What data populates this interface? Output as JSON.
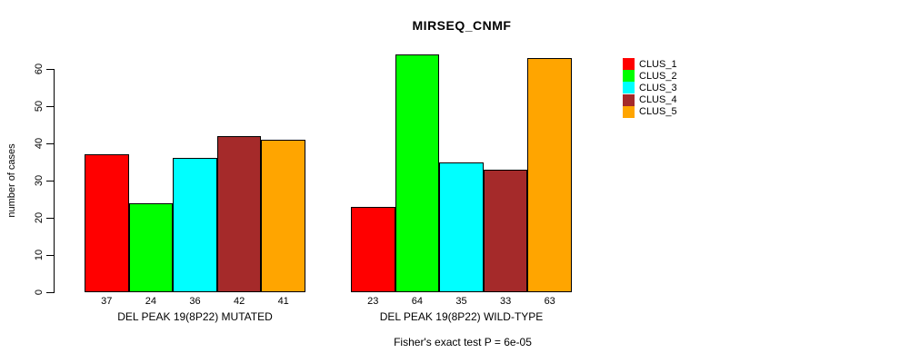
{
  "chart_data": {
    "type": "bar",
    "title": "MIRSEQ_CNMF",
    "ylabel": "number of cases",
    "xlabel": "",
    "ylim": [
      0,
      65
    ],
    "yticks": [
      0,
      10,
      20,
      30,
      40,
      50,
      60
    ],
    "grid": false,
    "legend_position": "right",
    "categories": [
      "DEL PEAK 19(8P22) MUTATED",
      "DEL PEAK 19(8P22) WILD-TYPE"
    ],
    "series": [
      {
        "name": "CLUS_1",
        "color": "#ff0000",
        "values": [
          37,
          23
        ]
      },
      {
        "name": "CLUS_2",
        "color": "#00ff00",
        "values": [
          24,
          64
        ]
      },
      {
        "name": "CLUS_3",
        "color": "#00ffff",
        "values": [
          36,
          35
        ]
      },
      {
        "name": "CLUS_4",
        "color": "#a52a2a",
        "values": [
          42,
          33
        ]
      },
      {
        "name": "CLUS_5",
        "color": "#ffa500",
        "values": [
          41,
          63
        ]
      }
    ],
    "bar_value_labels": [
      [
        37,
        24,
        36,
        42,
        41
      ],
      [
        23,
        64,
        35,
        33,
        63
      ]
    ],
    "footer": "Fisher's exact test P = 6e-05"
  }
}
